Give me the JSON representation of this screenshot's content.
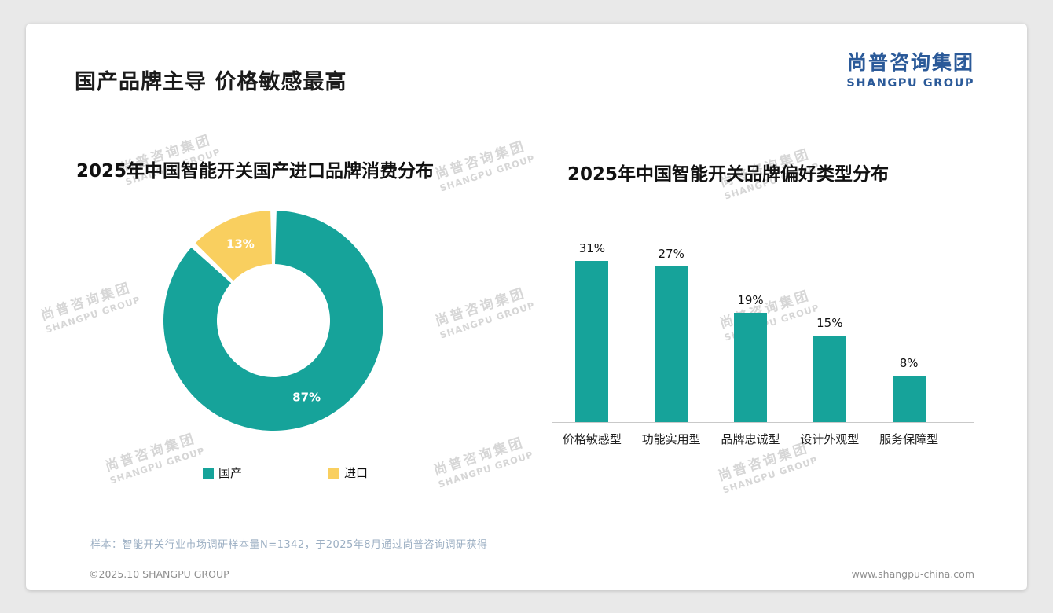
{
  "page": {
    "title": "国产品牌主导 价格敏感最高",
    "logo": {
      "cn": "尚普咨询集团",
      "en": "SHANGPU GROUP"
    },
    "watermark": {
      "line1": "尚普咨询集团",
      "line2": "SHANGPU GROUP"
    },
    "note": "样本：智能开关行业市场调研样本量N=1342，于2025年8月通过尚普咨询调研获得",
    "footer": {
      "left": "©2025.10 SHANGPU GROUP",
      "right": "www.shangpu-china.com"
    }
  },
  "colors": {
    "teal": "#16A39A",
    "yellow": "#F9CF5F",
    "logo_blue": "#2B5A99"
  },
  "chart_data": [
    {
      "type": "pie",
      "title": "2025年中国智能开关国产进口品牌消费分布",
      "labels": [
        "国产",
        "进口"
      ],
      "values": [
        87,
        13
      ],
      "unit": "%",
      "colors": [
        "#16A39A",
        "#F9CF5F"
      ],
      "donut": true,
      "start_angle": "top",
      "direction": "clockwise",
      "legend_position": "bottom"
    },
    {
      "type": "bar",
      "title": "2025年中国智能开关品牌偏好类型分布",
      "categories": [
        "价格敏感型",
        "功能实用型",
        "品牌忠诚型",
        "设计外观型",
        "服务保障型"
      ],
      "values": [
        31,
        27,
        19,
        15,
        8
      ],
      "unit": "%",
      "color": "#16A39A",
      "ylim": [
        0,
        33
      ],
      "grid": false,
      "value_labels": true
    }
  ]
}
